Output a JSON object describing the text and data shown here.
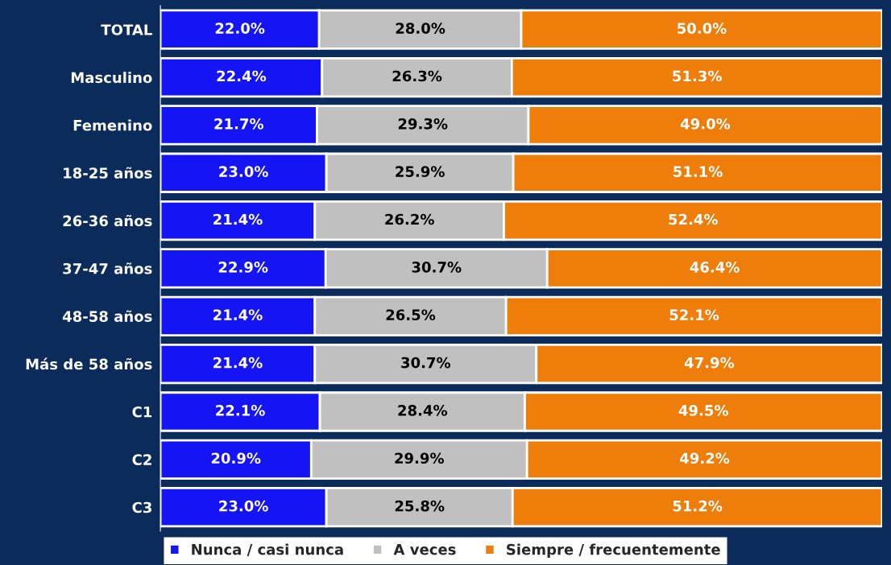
{
  "chart_data": {
    "type": "bar",
    "orientation": "horizontal",
    "stacked": true,
    "legend": "bottom",
    "categories": [
      "TOTAL",
      "Masculino",
      "Femenino",
      "18-25 años",
      "26-36 años",
      "37-47 años",
      "48-58 años",
      "Más de 58 años",
      "C1",
      "C2",
      "C3"
    ],
    "series": [
      {
        "name": "Nunca / casi nunca",
        "color": "#1414f5",
        "values": [
          22.0,
          22.4,
          21.7,
          23.0,
          21.4,
          22.9,
          21.4,
          21.4,
          22.1,
          20.9,
          23.0
        ],
        "value_labels": [
          "22.0%",
          "22.4%",
          "21.7%",
          "23.0%",
          "21.4%",
          "22.9%",
          "21.4%",
          "21.4%",
          "22.1%",
          "20.9%",
          "23.0%"
        ]
      },
      {
        "name": "A veces",
        "color": "#c0c0c0",
        "values": [
          28.0,
          26.3,
          29.3,
          25.9,
          26.2,
          30.7,
          26.5,
          30.7,
          28.4,
          29.9,
          25.8
        ],
        "value_labels": [
          "28.0%",
          "26.3%",
          "29.3%",
          "25.9%",
          "26.2%",
          "30.7%",
          "26.5%",
          "30.7%",
          "28.4%",
          "29.9%",
          "25.8%"
        ]
      },
      {
        "name": "Siempre / frecuentemente",
        "color": "#ef7d0a",
        "values": [
          50.0,
          51.3,
          49.0,
          51.1,
          52.4,
          46.4,
          52.1,
          47.9,
          49.5,
          49.2,
          51.2
        ],
        "value_labels": [
          "50.0%",
          "51.3%",
          "49.0%",
          "51.1%",
          "52.4%",
          "46.4%",
          "52.1%",
          "47.9%",
          "49.5%",
          "49.2%",
          "51.2%"
        ]
      }
    ]
  }
}
